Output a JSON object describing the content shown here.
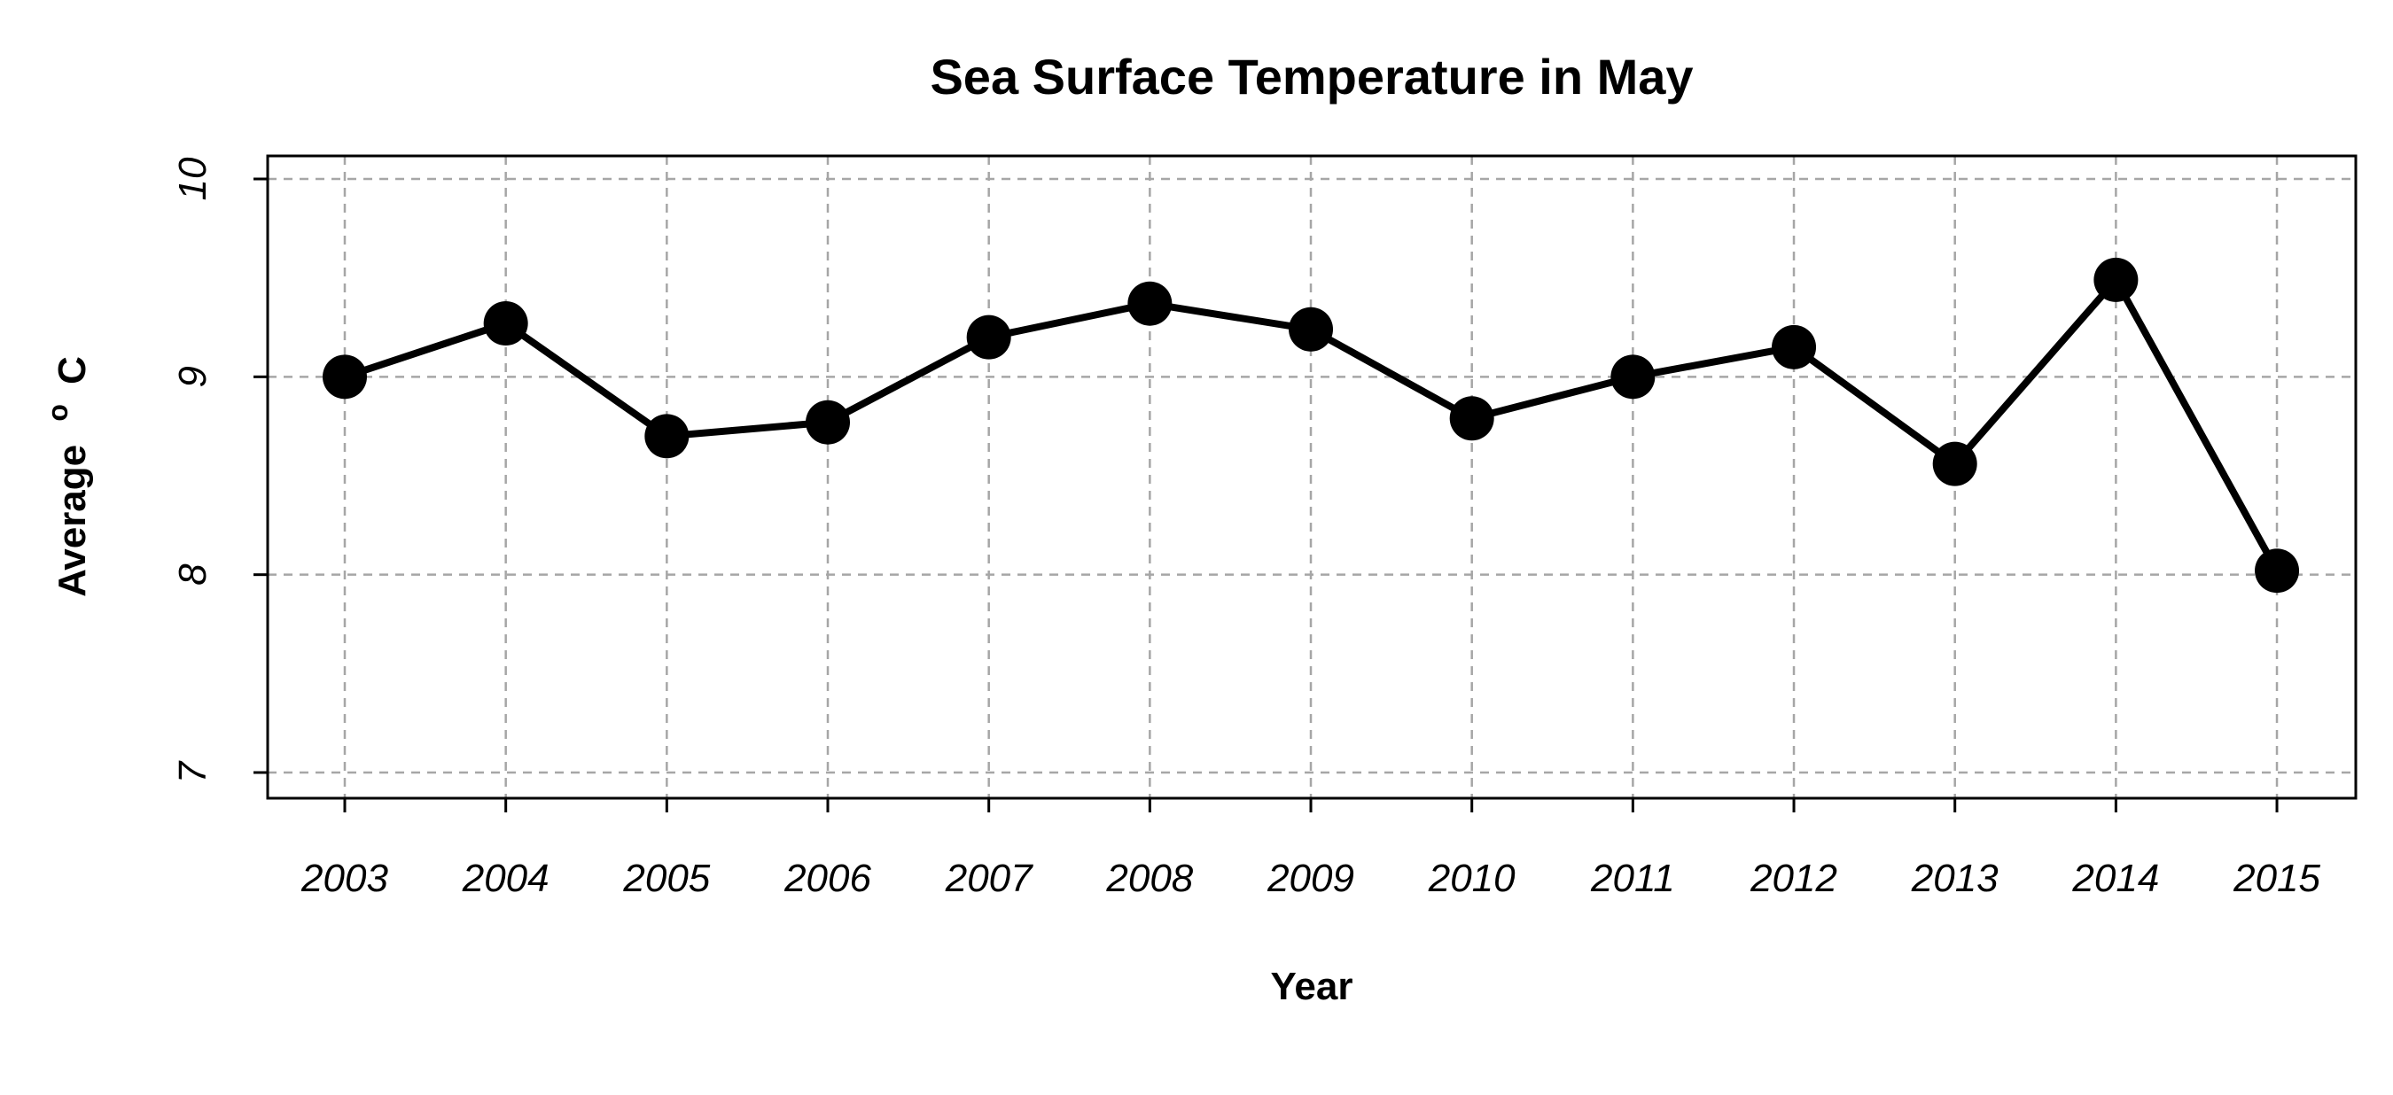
{
  "chart_data": {
    "type": "line",
    "title": "Sea Surface Temperature in May",
    "xlabel": "Year",
    "ylabel_text": "Average",
    "ylabel_superscript": "o",
    "ylabel_unit": "C",
    "categories": [
      "2003",
      "2004",
      "2005",
      "2006",
      "2007",
      "2008",
      "2009",
      "2010",
      "2011",
      "2012",
      "2013",
      "2014",
      "2015"
    ],
    "series": [
      {
        "name": "Average °C",
        "values": [
          9.0,
          9.27,
          8.7,
          8.77,
          9.2,
          9.37,
          9.24,
          8.79,
          9.0,
          9.15,
          8.56,
          9.49,
          8.02
        ]
      }
    ],
    "ylim": [
      7,
      10
    ],
    "yticks": [
      7,
      8,
      9,
      10
    ],
    "ytick_labels": [
      "7",
      "8",
      "9",
      "10"
    ],
    "grid": true,
    "marker": "filled-circle",
    "color": "#000000",
    "grid_color": "#a6a6a6"
  }
}
